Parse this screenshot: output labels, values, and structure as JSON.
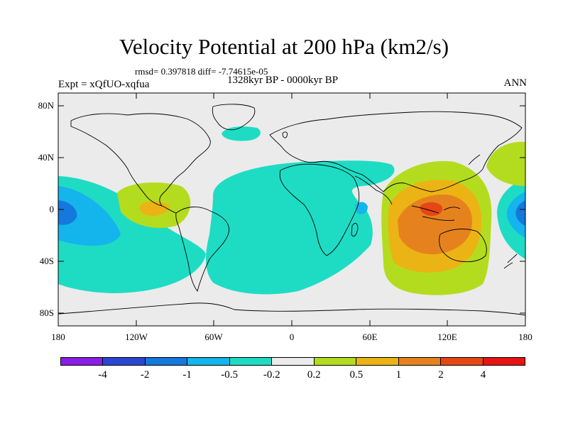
{
  "header": {
    "title": "Velocity Potential at 200 hPa (km2/s)",
    "stats": "rmsd= 0.397818 diff= -7.74615e-05",
    "experiment": "Expt = xQfUO-xqfua",
    "period": "1328kyr BP - 0000kyr BP",
    "season": "ANN"
  },
  "axes": {
    "y_ticks": [
      "80N",
      "40N",
      "0",
      "40S",
      "80S"
    ],
    "x_ticks": [
      "180",
      "120W",
      "60W",
      "0",
      "60E",
      "120E",
      "180"
    ]
  },
  "colorbar": {
    "colors": [
      "#8a1ee6",
      "#2846d2",
      "#1478dc",
      "#14b4ec",
      "#1edcc4",
      "#ebebeb",
      "#b4dc1e",
      "#ebb414",
      "#e6821e",
      "#e64614",
      "#e61414"
    ],
    "labels": [
      "-4",
      "-2",
      "-1",
      "-0.5",
      "-0.2",
      "0.2",
      "0.5",
      "1",
      "2",
      "4"
    ]
  },
  "chart_data": {
    "type": "heatmap",
    "title": "Velocity Potential at 200 hPa (km2/s)",
    "units": "km2/s",
    "xlim": [
      -180,
      180
    ],
    "ylim": [
      -90,
      90
    ],
    "levels": [
      -4,
      -2,
      -1,
      -0.5,
      -0.2,
      0.2,
      0.5,
      1,
      2,
      4
    ]
  }
}
